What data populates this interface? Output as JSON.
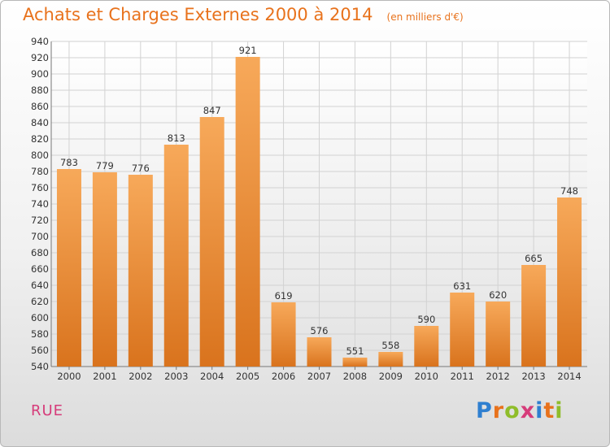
{
  "chart_data": {
    "type": "bar",
    "title": "Achats et Charges Externes 2000 à 2014",
    "subtitle": "(en milliers d'€)",
    "categories": [
      "2000",
      "2001",
      "2002",
      "2003",
      "2004",
      "2005",
      "2006",
      "2007",
      "2008",
      "2009",
      "2010",
      "2011",
      "2012",
      "2013",
      "2014"
    ],
    "values": [
      783,
      779,
      776,
      813,
      847,
      921,
      619,
      576,
      551,
      558,
      590,
      631,
      620,
      665,
      748
    ],
    "ylim": [
      540,
      940
    ],
    "yticks": [
      540,
      560,
      580,
      600,
      620,
      640,
      660,
      680,
      700,
      720,
      740,
      760,
      780,
      800,
      820,
      840,
      860,
      880,
      900,
      920,
      940
    ],
    "grid": true,
    "legend": "none",
    "xlabel": "",
    "ylabel": ""
  },
  "footer": {
    "commune": "RUE",
    "logo": {
      "letters": [
        {
          "ch": "P",
          "color": "#2f7fd0"
        },
        {
          "ch": "r",
          "color": "#e8721c"
        },
        {
          "ch": "o",
          "color": "#8fbd2a"
        },
        {
          "ch": "x",
          "color": "#d63c7a"
        },
        {
          "ch": "i",
          "color": "#2f7fd0"
        },
        {
          "ch": "t",
          "color": "#e8721c"
        },
        {
          "ch": "i",
          "color": "#8fbd2a"
        }
      ]
    }
  },
  "colors": {
    "title": "#e8721c",
    "bar_light": "#f7a95a",
    "bar_dark": "#d9731d",
    "commune": "#d63c7a"
  }
}
